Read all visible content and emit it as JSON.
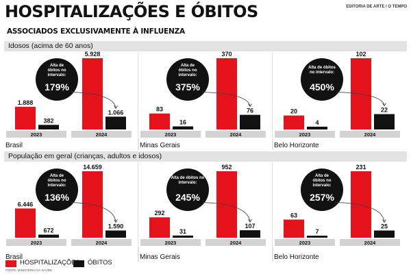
{
  "header": {
    "title": "HOSPITALIZAÇÕES E ÓBITOS",
    "subtitle": "ASSOCIADOS EXCLUSIVAMENTE À INFLUENZA",
    "credit": "EDITORIA DE ARTE / O TEMPO"
  },
  "sections": [
    {
      "label": "Idosos (acima de 60 anos)"
    },
    {
      "label": "População em geral (crianças, adultos e idosos)"
    }
  ],
  "legend": [
    {
      "label": "HOSPITALIZAÇÕES",
      "color": "#e3121b"
    },
    {
      "label": "ÓBITOS",
      "color": "#111111"
    }
  ],
  "source": "FONTE: MINISTÉRIO DA SAÚDE",
  "colors": {
    "hospitalizacoes": "#e3121b",
    "obitos": "#111111",
    "year_band": "#d3d3d3",
    "callout": "#111111"
  },
  "chart_data": [
    {
      "type": "bar",
      "group": "Idosos (acima de 60 anos)",
      "region": "Brasil",
      "categories": [
        "2023",
        "2024"
      ],
      "series": [
        {
          "name": "HOSPITALIZAÇÕES",
          "values": [
            1888,
            5928
          ],
          "labels": [
            "1.888",
            "5.928"
          ]
        },
        {
          "name": "ÓBITOS",
          "values": [
            382,
            1066
          ],
          "labels": [
            "382",
            "1.066"
          ]
        }
      ],
      "callout": {
        "line1": "Alta de",
        "line2": "óbitos no",
        "line3": "intervalo:",
        "value": "179%"
      }
    },
    {
      "type": "bar",
      "group": "Idosos (acima de 60 anos)",
      "region": "Minas Gerais",
      "categories": [
        "2023",
        "2024"
      ],
      "series": [
        {
          "name": "HOSPITALIZAÇÕES",
          "values": [
            83,
            370
          ],
          "labels": [
            "83",
            "370"
          ]
        },
        {
          "name": "ÓBITOS",
          "values": [
            16,
            76
          ],
          "labels": [
            "16",
            "76"
          ]
        }
      ],
      "callout": {
        "line1": "Alta de",
        "line2": "óbitos no",
        "line3": "intervalo:",
        "value": "375%"
      }
    },
    {
      "type": "bar",
      "group": "Idosos (acima de 60 anos)",
      "region": "Belo Horizonte",
      "categories": [
        "2023",
        "2024"
      ],
      "series": [
        {
          "name": "HOSPITALIZAÇÕES",
          "values": [
            20,
            102
          ],
          "labels": [
            "20",
            "102"
          ]
        },
        {
          "name": "ÓBITOS",
          "values": [
            4,
            22
          ],
          "labels": [
            "4",
            "22"
          ]
        }
      ],
      "callout": {
        "line1": "Alta de óbitos",
        "line2": "no intervalo:",
        "line3": "",
        "value": "450%"
      }
    },
    {
      "type": "bar",
      "group": "População em geral (crianças, adultos e idosos)",
      "region": "Brasil",
      "categories": [
        "2023",
        "2024"
      ],
      "series": [
        {
          "name": "HOSPITALIZAÇÕES",
          "values": [
            6446,
            14659
          ],
          "labels": [
            "6.446",
            "14.659"
          ]
        },
        {
          "name": "ÓBITOS",
          "values": [
            672,
            1590
          ],
          "labels": [
            "672",
            "1.590"
          ]
        }
      ],
      "callout": {
        "line1": "Alta de",
        "line2": "óbitos no",
        "line3": "intervalo:",
        "value": "136%"
      }
    },
    {
      "type": "bar",
      "group": "População em geral (crianças, adultos e idosos)",
      "region": "Minas Gerais",
      "categories": [
        "2023",
        "2024"
      ],
      "series": [
        {
          "name": "HOSPITALIZAÇÕES",
          "values": [
            292,
            952
          ],
          "labels": [
            "292",
            "952"
          ]
        },
        {
          "name": "ÓBITOS",
          "values": [
            31,
            107
          ],
          "labels": [
            "31",
            "107"
          ]
        }
      ],
      "callout": {
        "line1": "Alta de óbitos no",
        "line2": "intervalo:",
        "line3": "",
        "value": "245%"
      }
    },
    {
      "type": "bar",
      "group": "População em geral (crianças, adultos e idosos)",
      "region": "Belo Horizonte",
      "categories": [
        "2023",
        "2024"
      ],
      "series": [
        {
          "name": "HOSPITALIZAÇÕES",
          "values": [
            63,
            231
          ],
          "labels": [
            "63",
            "231"
          ]
        },
        {
          "name": "ÓBITOS",
          "values": [
            7,
            25
          ],
          "labels": [
            "7",
            "25"
          ]
        }
      ],
      "callout": {
        "line1": "Alta de",
        "line2": "óbitos no",
        "line3": "intervalo:",
        "value": "257%"
      }
    }
  ]
}
